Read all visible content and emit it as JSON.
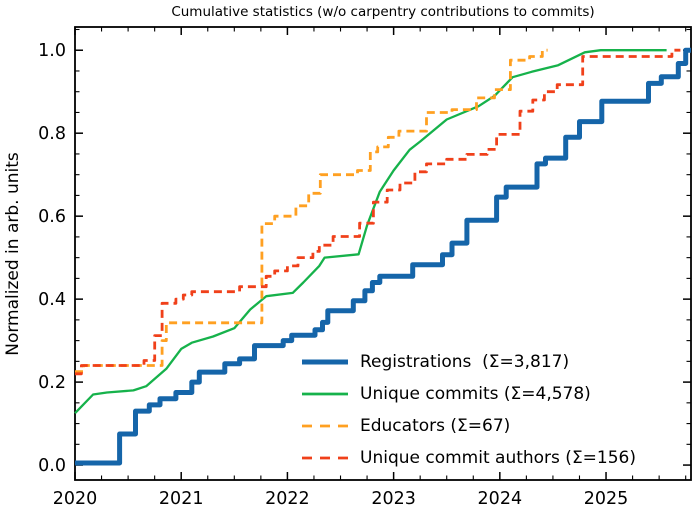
{
  "chart_data": {
    "type": "line",
    "title": "Cumulative statistics (w/o carpentry contributions to commits)",
    "xlabel": "",
    "ylabel": "Normalized in arb. units",
    "xlim": [
      2020,
      2025.8
    ],
    "ylim": [
      -0.036,
      1.056
    ],
    "x_major_ticks": [
      2020,
      2021,
      2022,
      2023,
      2024,
      2025
    ],
    "x_tick_labels": [
      "2020",
      "2021",
      "2022",
      "2023",
      "2024",
      "2025"
    ],
    "x_minor_step": 0.25,
    "y_major_ticks": [
      0.0,
      0.2,
      0.4,
      0.6,
      0.8,
      1.0
    ],
    "y_tick_labels": [
      "0.0",
      "0.2",
      "0.4",
      "0.6",
      "0.8",
      "1.0"
    ],
    "y_minor_step": 0.05,
    "grid": false,
    "legend_position": "lower right",
    "tick_style": "inward on all four spines",
    "series": [
      {
        "name": "registrations",
        "label": "Registrations  (Σ=3,817)",
        "total": 3817,
        "color": "#1565a9",
        "style": "solid",
        "width": 5,
        "mode": "steps",
        "points": [
          [
            2020.0,
            0.005
          ],
          [
            2020.42,
            0.075
          ],
          [
            2020.57,
            0.13
          ],
          [
            2020.7,
            0.145
          ],
          [
            2020.8,
            0.16
          ],
          [
            2020.95,
            0.175
          ],
          [
            2021.1,
            0.2
          ],
          [
            2021.17,
            0.224
          ],
          [
            2021.41,
            0.244
          ],
          [
            2021.55,
            0.256
          ],
          [
            2021.69,
            0.288
          ],
          [
            2021.96,
            0.3
          ],
          [
            2022.04,
            0.313
          ],
          [
            2022.26,
            0.326
          ],
          [
            2022.33,
            0.344
          ],
          [
            2022.38,
            0.372
          ],
          [
            2022.62,
            0.396
          ],
          [
            2022.73,
            0.42
          ],
          [
            2022.8,
            0.44
          ],
          [
            2022.87,
            0.455
          ],
          [
            2023.18,
            0.483
          ],
          [
            2023.46,
            0.507
          ],
          [
            2023.55,
            0.535
          ],
          [
            2023.69,
            0.59
          ],
          [
            2023.97,
            0.646
          ],
          [
            2024.06,
            0.67
          ],
          [
            2024.35,
            0.726
          ],
          [
            2024.43,
            0.74
          ],
          [
            2024.62,
            0.79
          ],
          [
            2024.75,
            0.828
          ],
          [
            2024.96,
            0.877
          ],
          [
            2025.4,
            0.92
          ],
          [
            2025.52,
            0.936
          ],
          [
            2025.68,
            0.968
          ],
          [
            2025.75,
            1.0
          ],
          [
            2025.8,
            1.0
          ]
        ]
      },
      {
        "name": "unique-commits",
        "label": "Unique commits (Σ=4,578)",
        "total": 4578,
        "color": "#16b24b",
        "style": "solid",
        "width": 2.3,
        "mode": "line",
        "points": [
          [
            2020.0,
            0.125
          ],
          [
            2020.17,
            0.17
          ],
          [
            2020.3,
            0.175
          ],
          [
            2020.55,
            0.18
          ],
          [
            2020.67,
            0.19
          ],
          [
            2020.86,
            0.232
          ],
          [
            2021.0,
            0.28
          ],
          [
            2021.1,
            0.295
          ],
          [
            2021.3,
            0.31
          ],
          [
            2021.5,
            0.33
          ],
          [
            2021.65,
            0.375
          ],
          [
            2021.8,
            0.407
          ],
          [
            2022.05,
            0.415
          ],
          [
            2022.15,
            0.44
          ],
          [
            2022.3,
            0.48
          ],
          [
            2022.35,
            0.5
          ],
          [
            2022.67,
            0.508
          ],
          [
            2022.75,
            0.578
          ],
          [
            2022.87,
            0.659
          ],
          [
            2023.0,
            0.71
          ],
          [
            2023.15,
            0.76
          ],
          [
            2023.25,
            0.78
          ],
          [
            2023.5,
            0.833
          ],
          [
            2023.8,
            0.865
          ],
          [
            2023.95,
            0.89
          ],
          [
            2024.12,
            0.935
          ],
          [
            2024.3,
            0.948
          ],
          [
            2024.55,
            0.964
          ],
          [
            2024.8,
            0.995
          ],
          [
            2024.95,
            1.0
          ],
          [
            2025.57,
            1.0
          ]
        ]
      },
      {
        "name": "educators",
        "label": "Educators (Σ=67)",
        "total": 67,
        "color": "#ffa021",
        "style": "dashed",
        "width": 2.8,
        "mode": "steps",
        "points": [
          [
            2020.0,
            0.225
          ],
          [
            2020.08,
            0.24
          ],
          [
            2020.82,
            0.3
          ],
          [
            2020.86,
            0.343
          ],
          [
            2021.76,
            0.582
          ],
          [
            2021.88,
            0.6
          ],
          [
            2022.08,
            0.625
          ],
          [
            2022.2,
            0.655
          ],
          [
            2022.31,
            0.7
          ],
          [
            2022.66,
            0.71
          ],
          [
            2022.78,
            0.755
          ],
          [
            2022.85,
            0.767
          ],
          [
            2022.95,
            0.79
          ],
          [
            2023.05,
            0.805
          ],
          [
            2023.31,
            0.85
          ],
          [
            2023.55,
            0.857
          ],
          [
            2023.78,
            0.885
          ],
          [
            2023.95,
            0.905
          ],
          [
            2024.1,
            0.976
          ],
          [
            2024.28,
            0.985
          ],
          [
            2024.4,
            1.0
          ],
          [
            2024.45,
            1.0
          ]
        ]
      },
      {
        "name": "unique-commit-authors",
        "label": "Unique commit authors (Σ=156)",
        "total": 156,
        "color": "#f0401a",
        "style": "dashed",
        "width": 2.8,
        "mode": "steps",
        "points": [
          [
            2020.0,
            0.22
          ],
          [
            2020.06,
            0.24
          ],
          [
            2020.65,
            0.252
          ],
          [
            2020.75,
            0.312
          ],
          [
            2020.82,
            0.39
          ],
          [
            2020.95,
            0.4
          ],
          [
            2021.02,
            0.41
          ],
          [
            2021.1,
            0.418
          ],
          [
            2021.55,
            0.43
          ],
          [
            2021.8,
            0.455
          ],
          [
            2021.88,
            0.468
          ],
          [
            2022.0,
            0.48
          ],
          [
            2022.1,
            0.5
          ],
          [
            2022.24,
            0.515
          ],
          [
            2022.3,
            0.53
          ],
          [
            2022.43,
            0.551
          ],
          [
            2022.68,
            0.583
          ],
          [
            2022.81,
            0.634
          ],
          [
            2022.94,
            0.663
          ],
          [
            2023.06,
            0.68
          ],
          [
            2023.2,
            0.707
          ],
          [
            2023.31,
            0.726
          ],
          [
            2023.5,
            0.737
          ],
          [
            2023.69,
            0.749
          ],
          [
            2023.88,
            0.761
          ],
          [
            2023.97,
            0.797
          ],
          [
            2024.19,
            0.853
          ],
          [
            2024.31,
            0.88
          ],
          [
            2024.42,
            0.9
          ],
          [
            2024.54,
            0.917
          ],
          [
            2024.78,
            0.985
          ],
          [
            2025.62,
            1.0
          ],
          [
            2025.7,
            1.0
          ]
        ]
      }
    ]
  }
}
